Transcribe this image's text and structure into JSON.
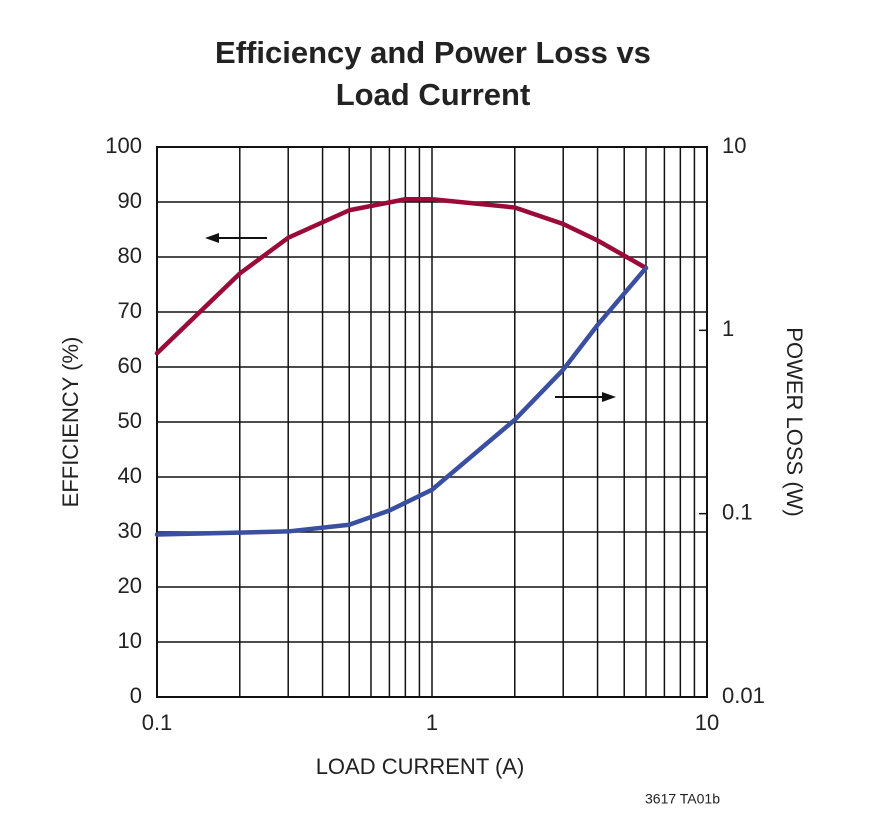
{
  "chart_data": {
    "type": "line",
    "title": "Efficiency and Power Loss vs Load Current",
    "xlabel": "LOAD CURRENT (A)",
    "ylabel": "EFFICIENCY (%)",
    "y2label": "POWER LOSS (W)",
    "footnote": "3617 TA01b",
    "xscale": "log",
    "y2scale": "log",
    "xlim": [
      0.1,
      10
    ],
    "xticks": [
      0.1,
      1,
      10
    ],
    "xgrid": [
      0.2,
      0.3,
      0.4,
      0.5,
      0.6,
      0.7,
      0.8,
      0.9,
      2,
      3,
      4,
      5,
      6,
      7,
      8,
      9
    ],
    "ylim": [
      0,
      100
    ],
    "yticks": [
      0,
      10,
      20,
      30,
      40,
      50,
      60,
      70,
      80,
      90,
      100
    ],
    "y2lim": [
      0.01,
      10
    ],
    "y2ticks": [
      0.01,
      0.1,
      1,
      10
    ],
    "grid": true,
    "series": [
      {
        "name": "Efficiency",
        "color": "#9b0b3a",
        "x": [
          0.1,
          0.2,
          0.3,
          0.5,
          0.8,
          1,
          2,
          3,
          4,
          6
        ],
        "values": [
          62.5,
          77,
          83.5,
          88.5,
          90.5,
          90.5,
          89,
          86,
          83,
          78
        ]
      },
      {
        "name": "Power Loss",
        "color": "#3a4fa0",
        "axis": "y2",
        "x": [
          0.1,
          0.3,
          0.5,
          0.7,
          1,
          2,
          3,
          4,
          6
        ],
        "values": [
          0.077,
          0.08,
          0.087,
          0.104,
          0.135,
          0.325,
          0.61,
          1.07,
          2.19
        ]
      }
    ]
  }
}
